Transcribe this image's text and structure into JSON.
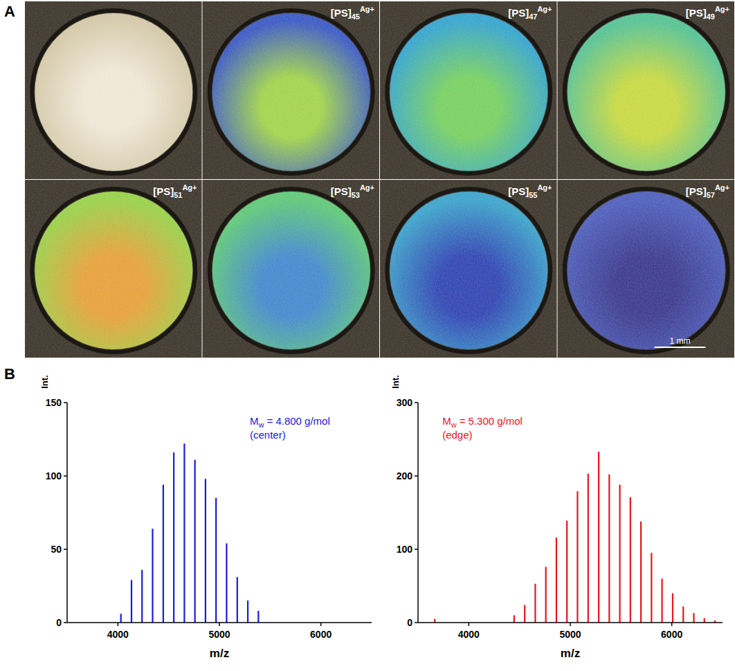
{
  "panel_a": {
    "label": "A",
    "photo": {
      "colors": [
        "#f4ecdb",
        "#d6caa9"
      ]
    },
    "ion_images": [
      {
        "label": {
          "main": "[PS]",
          "sub": "45",
          "sup": "Ag+"
        },
        "colors": [
          "#a6dc48",
          "#3556cc"
        ]
      },
      {
        "label": {
          "main": "[PS]",
          "sub": "47",
          "sup": "Ag+"
        },
        "colors": [
          "#78d860",
          "#2ea8d6"
        ]
      },
      {
        "label": {
          "main": "[PS]",
          "sub": "49",
          "sup": "Ag+"
        },
        "colors": [
          "#cfe23e",
          "#52c896"
        ]
      },
      {
        "label": {
          "main": "[PS]",
          "sub": "51",
          "sup": "Ag+"
        },
        "colors": [
          "#f2a434",
          "#9cd845"
        ]
      },
      {
        "label": {
          "main": "[PS]",
          "sub": "53",
          "sup": "Ag+"
        },
        "colors": [
          "#3f8ad6",
          "#5ccf78"
        ]
      },
      {
        "label": {
          "main": "[PS]",
          "sub": "55",
          "sup": "Ag+"
        },
        "colors": [
          "#2a40b8",
          "#36a6d2"
        ]
      },
      {
        "label": {
          "main": "[PS]",
          "sub": "57",
          "sup": "Ag+"
        },
        "colors": [
          "#35338f",
          "#4a5cc2"
        ]
      }
    ],
    "scale_bar": "1 mm"
  },
  "panel_b": {
    "label": "B"
  },
  "chart_data": [
    {
      "type": "bar",
      "color": "#1a1ad8",
      "x": [
        4030,
        4134,
        4238,
        4342,
        4447,
        4551,
        4655,
        4759,
        4863,
        4967,
        5071,
        5176,
        5280,
        5384
      ],
      "values": [
        6,
        29,
        36,
        64,
        94,
        116,
        122,
        111,
        98,
        85,
        54,
        31,
        15,
        8
      ],
      "xlim": [
        3500,
        6500
      ],
      "xticks": [
        4000,
        5000,
        6000
      ],
      "ylim": [
        0,
        150
      ],
      "yticks": [
        0,
        50,
        100,
        150
      ],
      "x_label": "m/z",
      "y_label": "Int.",
      "annotation": {
        "main": "M",
        "sub": "w",
        "text": "= 4.800 g/mol",
        "note": "(center)"
      }
    },
    {
      "type": "bar",
      "color": "#e8141c",
      "x": [
        3665,
        4447,
        4551,
        4655,
        4759,
        4863,
        4967,
        5071,
        5176,
        5280,
        5384,
        5488,
        5592,
        5696,
        5800,
        5904,
        6009,
        6113,
        6217,
        6321,
        6425
      ],
      "values": [
        5,
        10,
        24,
        53,
        76,
        116,
        139,
        179,
        203,
        233,
        202,
        188,
        171,
        138,
        95,
        60,
        40,
        22,
        13,
        6,
        3
      ],
      "xlim": [
        3500,
        6500
      ],
      "xticks": [
        4000,
        5000,
        6000
      ],
      "ylim": [
        0,
        300
      ],
      "yticks": [
        0,
        100,
        200,
        300
      ],
      "x_label": "m/z",
      "y_label": "Int.",
      "annotation": {
        "main": "M",
        "sub": "w",
        "text": "= 5.300 g/mol",
        "note": "(edge)"
      }
    }
  ]
}
